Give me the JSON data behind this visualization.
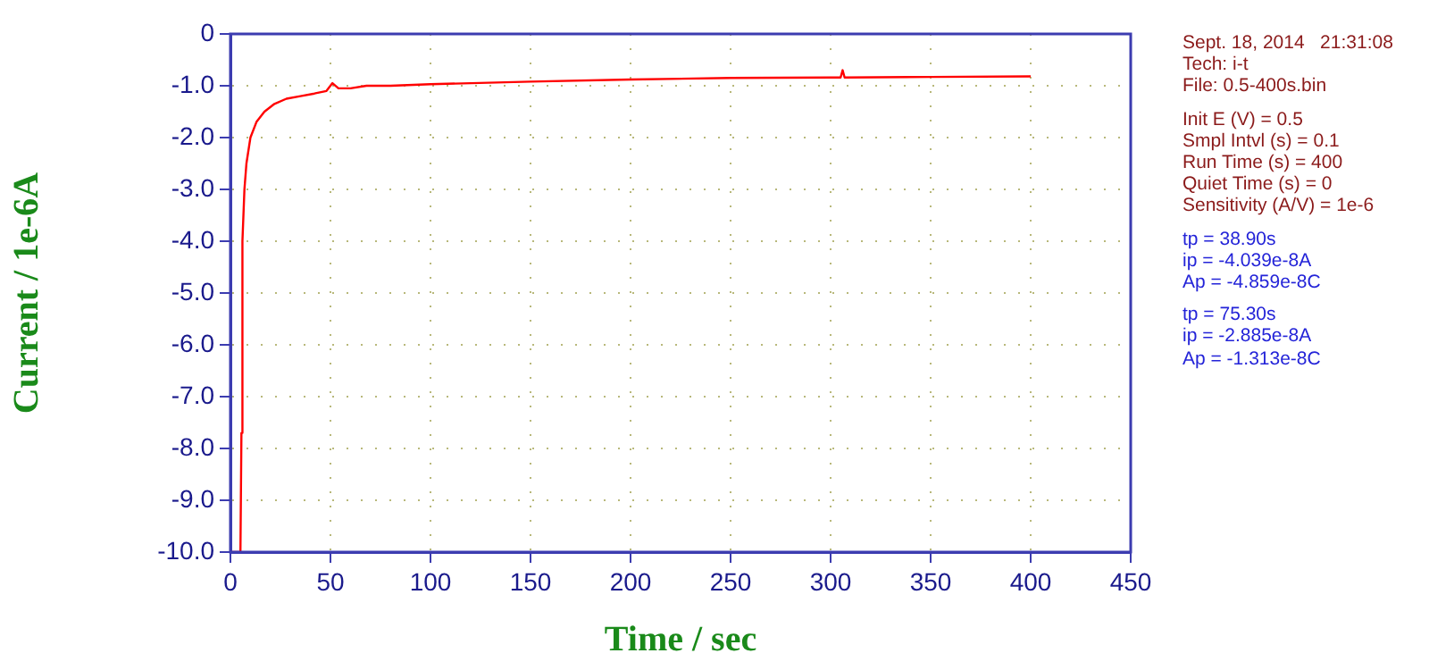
{
  "chart_data": {
    "type": "line",
    "xlabel": "Time / sec",
    "ylabel": "Current / 1e-6A",
    "x": [
      0,
      5,
      5.5,
      6,
      7,
      8,
      10,
      13,
      17,
      22,
      28,
      35,
      42,
      48,
      51,
      54,
      60,
      68,
      80,
      100,
      150,
      200,
      250,
      300,
      305,
      306,
      307,
      350,
      400
    ],
    "series": [
      {
        "color": "#ff0000",
        "values": [
          -10,
          -10,
          -7.7,
          -4.0,
          -3.0,
          -2.5,
          -2.0,
          -1.7,
          -1.5,
          -1.35,
          -1.25,
          -1.2,
          -1.15,
          -1.1,
          -0.95,
          -1.05,
          -1.05,
          -1.0,
          -1.0,
          -0.97,
          -0.92,
          -0.88,
          -0.85,
          -0.84,
          -0.84,
          -0.7,
          -0.84,
          -0.83,
          -0.82
        ]
      }
    ],
    "xlim": [
      0,
      450
    ],
    "xticks": [
      0,
      50,
      100,
      150,
      200,
      250,
      300,
      350,
      400,
      450
    ],
    "ylim": [
      -10,
      0
    ],
    "yticks": [
      0,
      {
        "value": -1,
        "label": "-1.0"
      },
      {
        "value": -2,
        "label": "-2.0"
      },
      {
        "value": -3,
        "label": "-3.0"
      },
      {
        "value": -4,
        "label": "-4.0"
      },
      {
        "value": -5,
        "label": "-5.0"
      },
      {
        "value": -6,
        "label": "-6.0"
      },
      {
        "value": -7,
        "label": "-7.0"
      },
      {
        "value": -8,
        "label": "-8.0"
      },
      {
        "value": -9,
        "label": "-9.0"
      },
      {
        "value": -10,
        "label": "-10.0"
      }
    ],
    "grid": true,
    "marker": "none",
    "line_style": "solid",
    "legend": false,
    "annotations": [
      "Sept. 18, 2014   21:31:08",
      "Tech: i-t",
      "File: 0.5-400s.bin",
      "Init E (V) = 0.5",
      "Smpl Intvl (s) = 0.1",
      "Run Time (s) = 400",
      "Quiet Time (s) = 0",
      "Sensitivity (A/V) = 1e-6",
      "tp = 38.90s",
      "ip = -4.039e-8A",
      "Ap = -4.859e-8C",
      "tp = 75.30s",
      "ip = -2.885e-8A",
      "Ap = -1.313e-8C"
    ]
  }
}
